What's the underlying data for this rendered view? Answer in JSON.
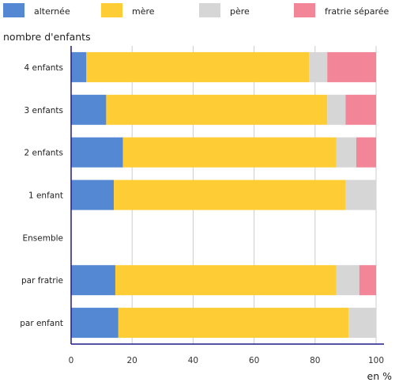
{
  "chart_data": {
    "type": "bar",
    "orientation": "horizontal",
    "stacked": true,
    "ylabel": "nombre d'enfants",
    "xlabel": "en %",
    "xlim": [
      0,
      100
    ],
    "xticks": [
      0,
      20,
      40,
      60,
      80,
      100
    ],
    "grid": true,
    "legend_position": "top",
    "categories": [
      "4 enfants",
      "3 enfants",
      "2 enfants",
      "1 enfant",
      "Ensemble",
      "par fratrie",
      "par enfant"
    ],
    "series": [
      {
        "name": "alternée",
        "color": "#5588d3",
        "values": [
          5,
          11.5,
          17,
          14,
          null,
          14.5,
          15.5
        ]
      },
      {
        "name": "mère",
        "color": "#fecd35",
        "values": [
          73,
          72.5,
          70,
          76,
          null,
          72.5,
          75.5
        ]
      },
      {
        "name": "père",
        "color": "#d6d6d6",
        "values": [
          6,
          6,
          6.5,
          10,
          null,
          7.5,
          9
        ]
      },
      {
        "name": "fratrie séparée",
        "color": "#f28598",
        "values": [
          16,
          10,
          6.5,
          0,
          null,
          5.5,
          0
        ]
      }
    ]
  }
}
